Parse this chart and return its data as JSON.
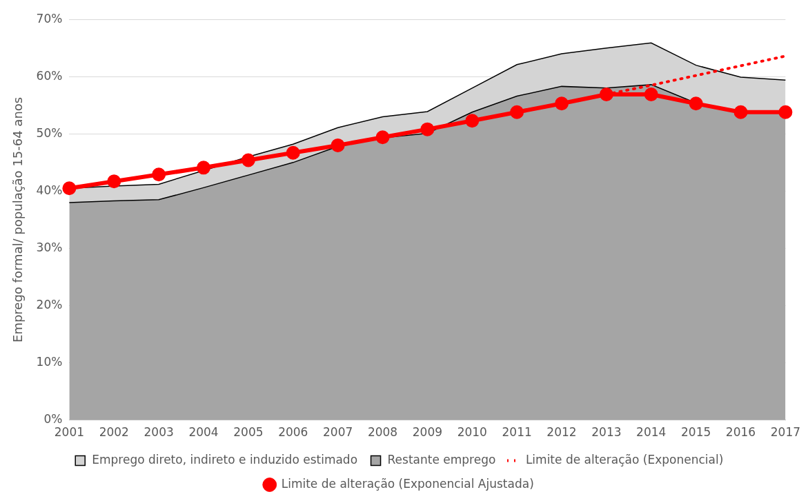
{
  "chart_data": {
    "type": "area",
    "stacked": true,
    "ylabel": "Emprego formal/ população 15-64 anos",
    "categories": [
      "2001",
      "2002",
      "2003",
      "2004",
      "2005",
      "2006",
      "2007",
      "2008",
      "2009",
      "2010",
      "2011",
      "2012",
      "2013",
      "2014",
      "2015",
      "2016",
      "2017"
    ],
    "ylim": [
      0,
      70
    ],
    "yticks": [
      {
        "value": 0,
        "label": "0%"
      },
      {
        "value": 10,
        "label": "10%"
      },
      {
        "value": 20,
        "label": "20%"
      },
      {
        "value": 30,
        "label": "30%"
      },
      {
        "value": 40,
        "label": "40%"
      },
      {
        "value": 50,
        "label": "50%"
      },
      {
        "value": 60,
        "label": "60%"
      },
      {
        "value": 70,
        "label": "70%"
      }
    ],
    "grid": "y",
    "legend": "bottom",
    "series": [
      {
        "name": "Restante emprego",
        "color": "#a5a5a5",
        "values": [
          38.0,
          38.3,
          38.5,
          40.6,
          42.8,
          45.0,
          47.8,
          49.3,
          50.1,
          53.8,
          56.6,
          58.3,
          58.0,
          58.6,
          55.4,
          53.9,
          53.7
        ]
      },
      {
        "name": "Emprego direto, indireto e induzido estimado",
        "color": "#d4d4d4",
        "values": [
          2.5,
          2.6,
          2.7,
          3.0,
          3.2,
          3.2,
          3.3,
          3.7,
          3.8,
          4.2,
          5.5,
          5.7,
          7.0,
          7.3,
          6.6,
          6.0,
          5.7
        ]
      },
      {
        "name": "Limite de alteração (Exponencial)",
        "type": "line",
        "color": "#ff0000",
        "line_style": "dotted",
        "marker": "none",
        "values": [
          null,
          null,
          null,
          null,
          null,
          null,
          null,
          null,
          null,
          null,
          null,
          null,
          56.9,
          58.5,
          60.2,
          61.9,
          63.6
        ]
      },
      {
        "name": "Limite de alteração (Exponencial Ajustada)",
        "type": "line",
        "color": "#ff0000",
        "line_style": "solid",
        "marker": "circle",
        "values": [
          40.5,
          41.7,
          42.9,
          44.1,
          45.4,
          46.7,
          48.0,
          49.4,
          50.8,
          52.3,
          53.8,
          55.3,
          56.9,
          56.9,
          55.3,
          53.8,
          53.8
        ]
      }
    ]
  }
}
